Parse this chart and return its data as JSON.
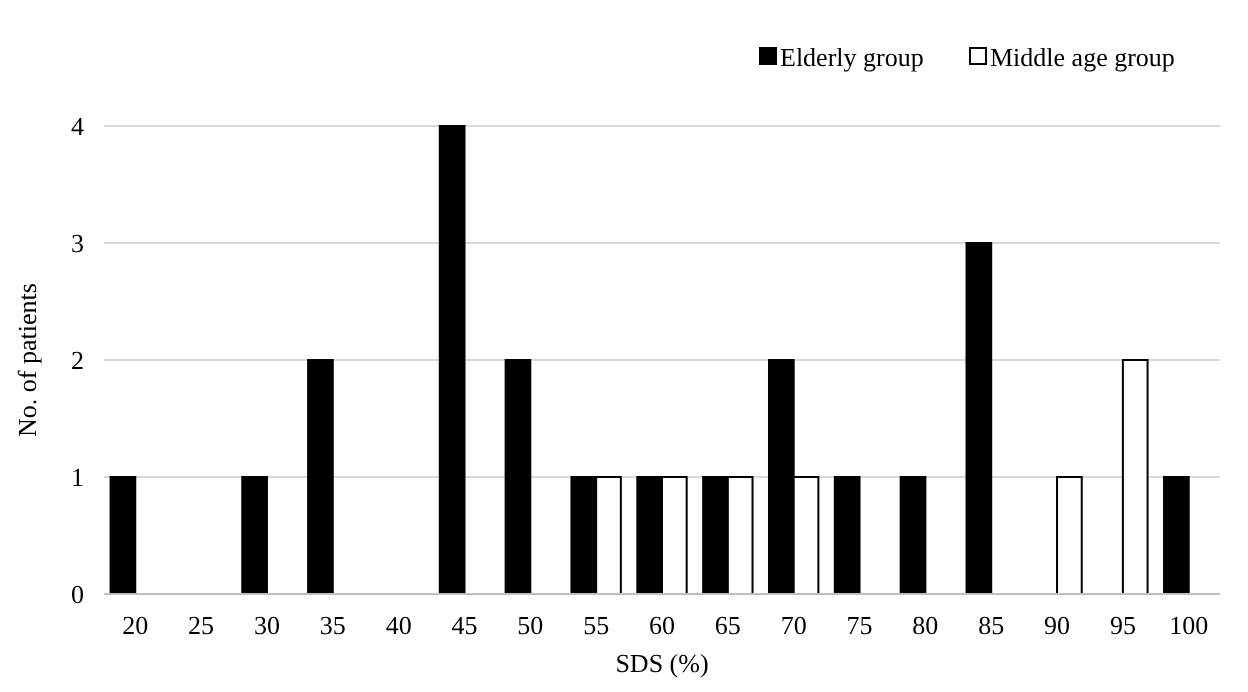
{
  "chart_data": {
    "type": "bar",
    "xlabel": "SDS (%)",
    "ylabel": "No. of patients",
    "categories": [
      "20",
      "25",
      "30",
      "35",
      "40",
      "45",
      "50",
      "55",
      "60",
      "65",
      "70",
      "75",
      "80",
      "85",
      "90",
      "95",
      "100"
    ],
    "series": [
      {
        "name": "Elderly group",
        "color": "#000000",
        "values": [
          1,
          0,
          1,
          2,
          0,
          4,
          2,
          1,
          1,
          1,
          2,
          1,
          1,
          3,
          0,
          0,
          1
        ]
      },
      {
        "name": "Middle age group",
        "color": "#ffffff",
        "values": [
          0,
          0,
          0,
          0,
          0,
          0,
          0,
          1,
          1,
          1,
          1,
          0,
          0,
          0,
          1,
          2,
          0
        ]
      }
    ],
    "ylim": [
      0,
      4
    ],
    "yticks": [
      0,
      1,
      2,
      3,
      4
    ],
    "grid": "y",
    "legend": "top right"
  }
}
